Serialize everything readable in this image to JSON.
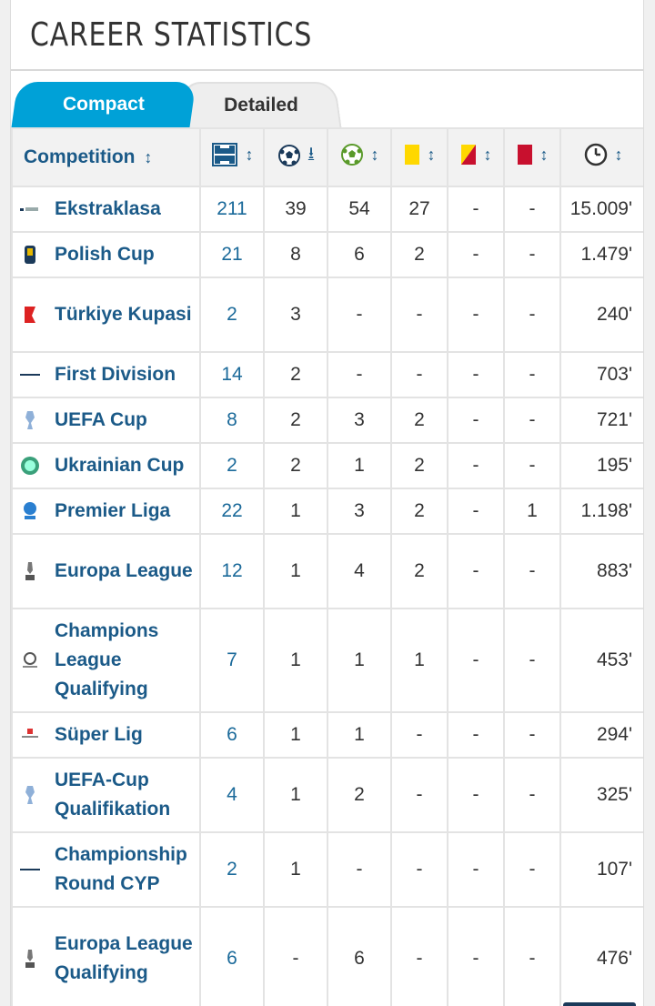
{
  "title": "CAREER STATISTICS",
  "tabs": [
    {
      "label": "Compact",
      "active": true
    },
    {
      "label": "Detailed",
      "active": false
    }
  ],
  "table": {
    "competition_header": "Competition",
    "sort_glyph": "↕",
    "sort_active_glyph": "⭳",
    "header_icons": [
      "pitch-appearances-icon",
      "ball-goals-icon",
      "assists-icon",
      "yellow-card-icon",
      "yellow-red-card-icon",
      "red-card-icon",
      "clock-minutes-icon"
    ],
    "rows": [
      {
        "competition": "Ekstraklasa",
        "apps": "211",
        "goals": "39",
        "assists": "54",
        "yellow": "27",
        "yellow_red": "-",
        "red": "-",
        "minutes": "15.009'"
      },
      {
        "competition": "Polish Cup",
        "apps": "21",
        "goals": "8",
        "assists": "6",
        "yellow": "2",
        "yellow_red": "-",
        "red": "-",
        "minutes": "1.479'"
      },
      {
        "competition": "Türkiye Kupasi",
        "apps": "2",
        "goals": "3",
        "assists": "-",
        "yellow": "-",
        "yellow_red": "-",
        "red": "-",
        "minutes": "240'"
      },
      {
        "competition": "First Division",
        "apps": "14",
        "goals": "2",
        "assists": "-",
        "yellow": "-",
        "yellow_red": "-",
        "red": "-",
        "minutes": "703'"
      },
      {
        "competition": "UEFA Cup",
        "apps": "8",
        "goals": "2",
        "assists": "3",
        "yellow": "2",
        "yellow_red": "-",
        "red": "-",
        "minutes": "721'"
      },
      {
        "competition": "Ukrainian Cup",
        "apps": "2",
        "goals": "2",
        "assists": "1",
        "yellow": "2",
        "yellow_red": "-",
        "red": "-",
        "minutes": "195'"
      },
      {
        "competition": "Premier Liga",
        "apps": "22",
        "goals": "1",
        "assists": "3",
        "yellow": "2",
        "yellow_red": "-",
        "red": "1",
        "minutes": "1.198'"
      },
      {
        "competition": "Europa League",
        "apps": "12",
        "goals": "1",
        "assists": "4",
        "yellow": "2",
        "yellow_red": "-",
        "red": "-",
        "minutes": "883'"
      },
      {
        "competition": "Champions League Qualifying",
        "apps": "7",
        "goals": "1",
        "assists": "1",
        "yellow": "1",
        "yellow_red": "-",
        "red": "-",
        "minutes": "453'"
      },
      {
        "competition": "Süper Lig",
        "apps": "6",
        "goals": "1",
        "assists": "1",
        "yellow": "-",
        "yellow_red": "-",
        "red": "-",
        "minutes": "294'"
      },
      {
        "competition": "UEFA-Cup Qualifikation",
        "apps": "4",
        "goals": "1",
        "assists": "2",
        "yellow": "-",
        "yellow_red": "-",
        "red": "-",
        "minutes": "325'"
      },
      {
        "competition": "Championship Round CYP",
        "apps": "2",
        "goals": "1",
        "assists": "-",
        "yellow": "-",
        "yellow_red": "-",
        "red": "-",
        "minutes": "107'"
      },
      {
        "competition": "Europa League Qualifying",
        "apps": "6",
        "goals": "-",
        "assists": "6",
        "yellow": "-",
        "yellow_red": "-",
        "red": "-",
        "minutes": "476'"
      }
    ]
  },
  "colors": {
    "accent": "#00a1d7",
    "link": "#1b5a88",
    "yellow_card": "#ffd800",
    "red_card": "#c8102e"
  }
}
